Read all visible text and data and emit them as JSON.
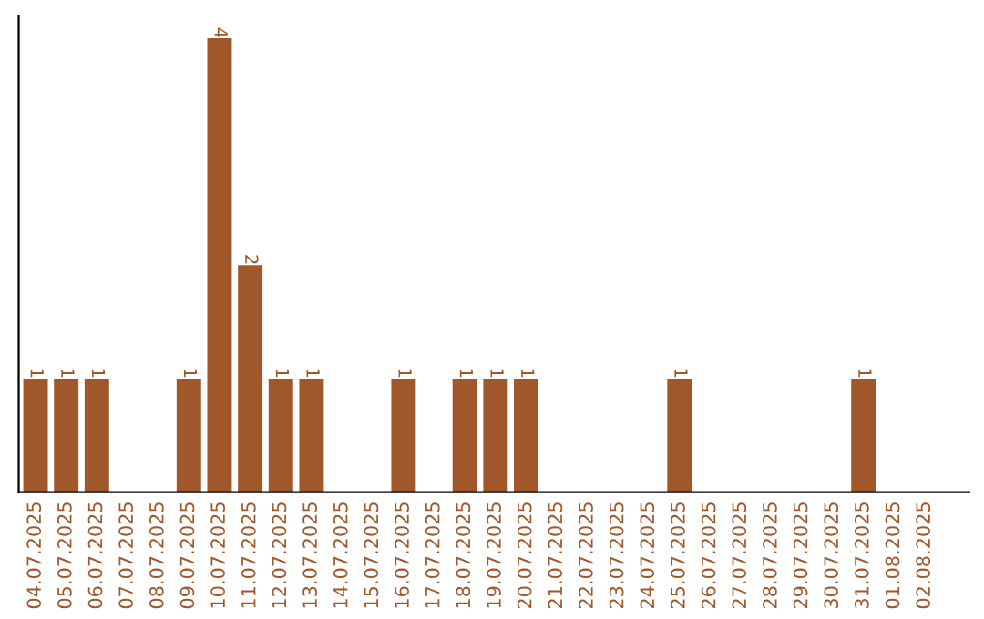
{
  "chart_data": {
    "type": "bar",
    "categories": [
      "04.07.2025",
      "05.07.2025",
      "06.07.2025",
      "07.07.2025",
      "08.07.2025",
      "09.07.2025",
      "10.07.2025",
      "11.07.2025",
      "12.07.2025",
      "13.07.2025",
      "14.07.2025",
      "15.07.2025",
      "16.07.2025",
      "17.07.2025",
      "18.07.2025",
      "19.07.2025",
      "20.07.2025",
      "21.07.2025",
      "22.07.2025",
      "23.07.2025",
      "24.07.2025",
      "25.07.2025",
      "26.07.2025",
      "27.07.2025",
      "28.07.2025",
      "29.07.2025",
      "30.07.2025",
      "31.07.2025",
      "01.08.2025",
      "02.08.2025"
    ],
    "values": [
      1,
      1,
      1,
      0,
      0,
      1,
      4,
      2,
      1,
      1,
      0,
      0,
      1,
      0,
      1,
      1,
      1,
      0,
      0,
      0,
      0,
      1,
      0,
      0,
      0,
      0,
      0,
      1,
      0,
      0
    ],
    "value_labels": [
      "1",
      "1",
      "1",
      null,
      null,
      "1",
      "4",
      "2",
      "1",
      "1",
      null,
      null,
      "1",
      null,
      "1",
      "1",
      "1",
      null,
      null,
      null,
      null,
      "1",
      null,
      null,
      null,
      null,
      null,
      "1",
      null,
      null
    ],
    "color": "#a0572a",
    "grid": false,
    "legend": false,
    "tick_labels": "x"
  }
}
